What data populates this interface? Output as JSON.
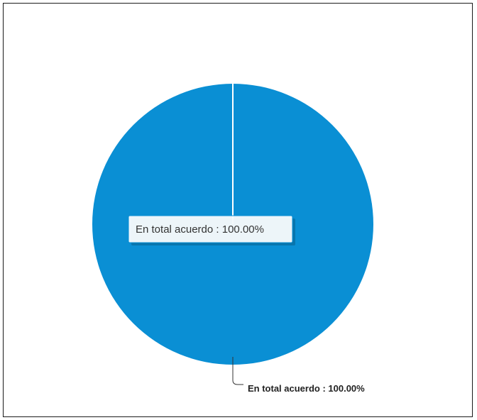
{
  "chart_data": {
    "type": "pie",
    "slices": [
      {
        "label": "En total acuerdo",
        "value": 100.0,
        "color": "#0a8fd4"
      }
    ],
    "data_label": "En total acuerdo : 100.00%",
    "tooltip": "En total acuerdo : 100.00%"
  }
}
